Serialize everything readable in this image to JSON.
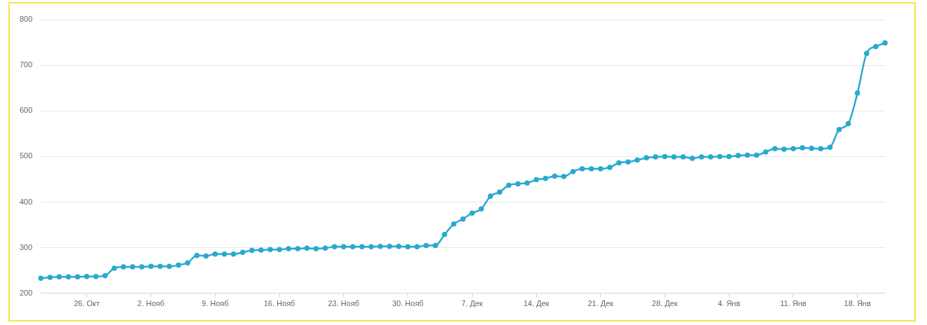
{
  "chart_data": {
    "type": "line",
    "categories": [
      null,
      null,
      null,
      null,
      null,
      "26. Окт",
      null,
      null,
      null,
      null,
      null,
      null,
      "2. Нояб",
      null,
      null,
      null,
      null,
      null,
      null,
      "9. Нояб",
      null,
      null,
      null,
      null,
      null,
      null,
      "16. Нояб",
      null,
      null,
      null,
      null,
      null,
      null,
      "23. Нояб",
      null,
      null,
      null,
      null,
      null,
      null,
      "30. Нояб",
      null,
      null,
      null,
      null,
      null,
      null,
      "7. Дек",
      null,
      null,
      null,
      null,
      null,
      null,
      "14. Дек",
      null,
      null,
      null,
      null,
      null,
      null,
      "21. Дек",
      null,
      null,
      null,
      null,
      null,
      null,
      "28. Дек",
      null,
      null,
      null,
      null,
      null,
      null,
      "4. Янв",
      null,
      null,
      null,
      null,
      null,
      null,
      "11. Янв",
      null,
      null,
      null,
      null,
      null,
      null,
      "18. Янв",
      null,
      null,
      null
    ],
    "series": [
      {
        "color": "#29a9cf",
        "values": [
          233,
          235,
          236,
          236,
          236,
          237,
          237,
          239,
          255,
          258,
          258,
          258,
          259,
          259,
          259,
          262,
          267,
          283,
          282,
          286,
          286,
          286,
          290,
          294,
          295,
          296,
          296,
          298,
          298,
          299,
          298,
          299,
          302,
          302,
          302,
          302,
          302,
          303,
          303,
          303,
          302,
          302,
          305,
          305,
          329,
          352,
          363,
          376,
          385,
          413,
          422,
          437,
          440,
          442,
          449,
          452,
          457,
          456,
          467,
          473,
          473,
          473,
          476,
          486,
          488,
          492,
          497,
          499,
          500,
          499,
          499,
          496,
          499,
          499,
          500,
          500,
          502,
          503,
          503,
          510,
          517,
          516,
          517,
          519,
          518,
          517,
          520,
          559,
          572,
          639,
          726,
          741,
          749
        ]
      }
    ],
    "ylim": [
      200,
      800
    ],
    "yticks": [
      200,
      300,
      400,
      500,
      600,
      700,
      800
    ],
    "grid": "y",
    "marker": "circle",
    "line_style": "solid"
  }
}
